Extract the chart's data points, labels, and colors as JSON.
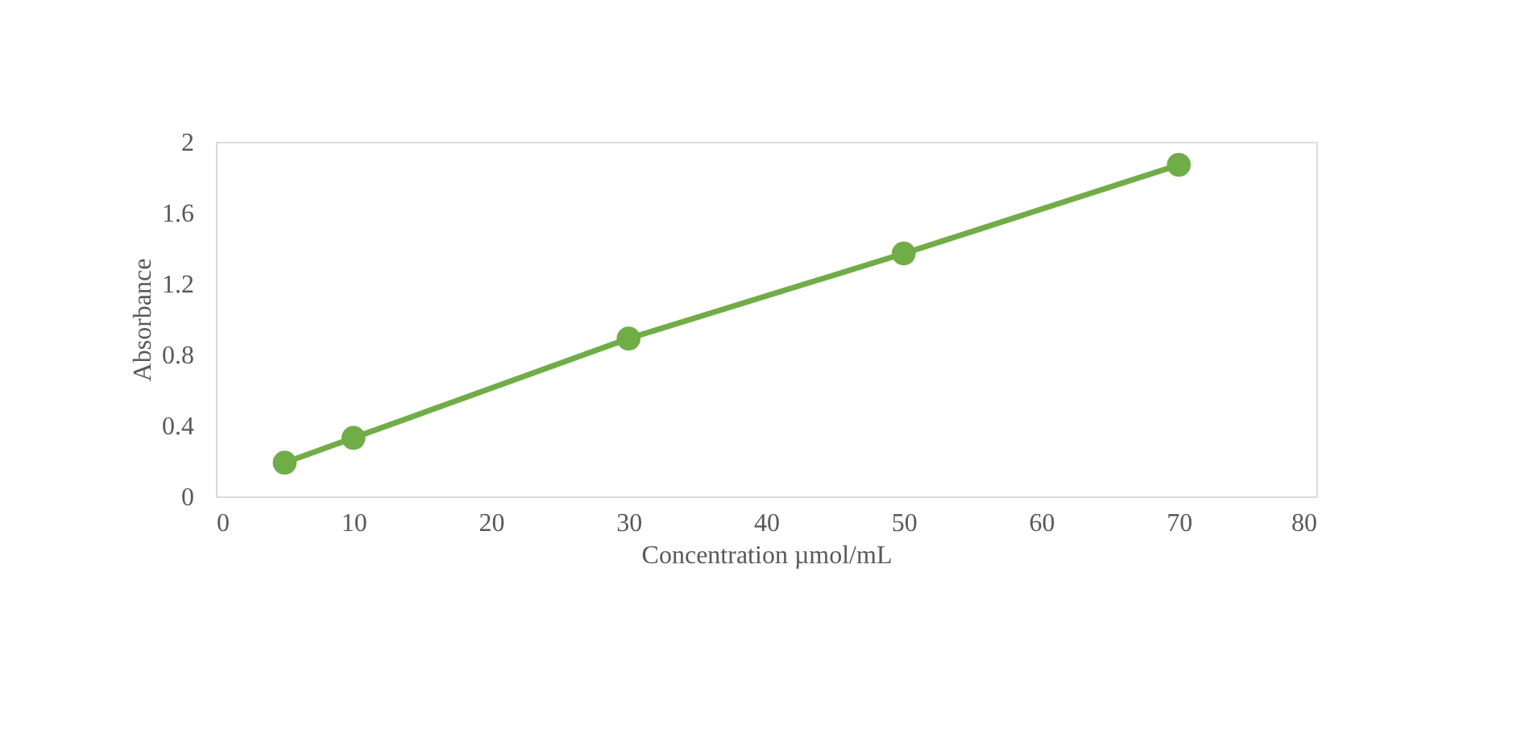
{
  "chart_data": {
    "type": "line",
    "xlabel": "Concentration µmol/mL",
    "ylabel": "Absorbance",
    "x": [
      5,
      10,
      30,
      50,
      70
    ],
    "series": [
      {
        "color": "#70ad47",
        "values": [
          0.19,
          0.33,
          0.89,
          1.37,
          1.87
        ]
      }
    ],
    "xlim": [
      0,
      80
    ],
    "xticks": [
      0,
      10,
      20,
      30,
      40,
      50,
      60,
      70,
      80
    ],
    "ylim": [
      0,
      2
    ],
    "yticks": [
      0,
      0.4,
      0.8,
      1.2,
      1.6,
      2
    ],
    "marker": "circle",
    "line_style": "solid",
    "grid": false,
    "legend": false
  }
}
